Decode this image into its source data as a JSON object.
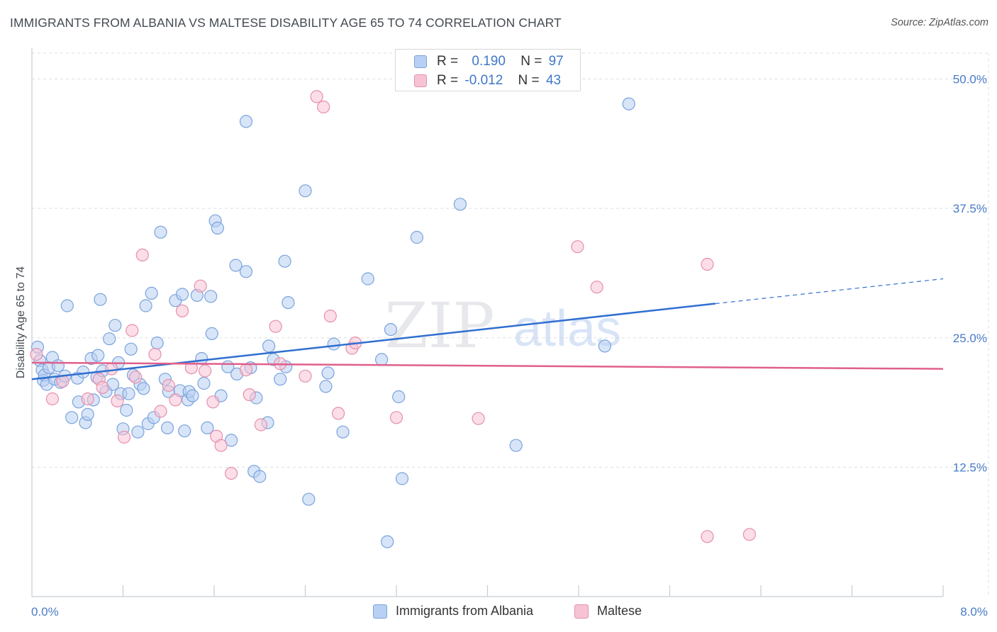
{
  "title": "IMMIGRANTS FROM ALBANIA VS MALTESE DISABILITY AGE 65 TO 74 CORRELATION CHART",
  "source": "Source: ZipAtlas.com",
  "watermark": {
    "zip": "ZIP",
    "atlas": "atlas"
  },
  "colors": {
    "blue_fill": "#b8d0f3",
    "blue_stroke": "#7aa3dc",
    "blue_line": "#2f6fd0",
    "pink_fill": "#f7c3d4",
    "pink_stroke": "#e58fae",
    "pink_line": "#e0608a",
    "tick_text": "#4a7cc7",
    "grid": "#dcdfe6"
  },
  "legend": {
    "series1": {
      "r_label": "R =",
      "r_value": "0.190",
      "n_label": "N =",
      "n_value": "97"
    },
    "series2": {
      "r_label": "R =",
      "r_value": "-0.012",
      "n_label": "N =",
      "n_value": "43"
    }
  },
  "chart_data": {
    "type": "scatter",
    "title": "IMMIGRANTS FROM ALBANIA VS MALTESE DISABILITY AGE 65 TO 74 CORRELATION CHART",
    "xlabel": "",
    "ylabel": "Disability Age 65 to 74",
    "xlim": [
      0,
      8.0
    ],
    "ylim": [
      0,
      52.5
    ],
    "x_tick_labels": [
      "0.0%",
      "8.0%"
    ],
    "y_ticks": [
      12.5,
      25.0,
      37.5,
      50.0
    ],
    "y_tick_labels": [
      "12.5%",
      "25.0%",
      "37.5%",
      "50.0%"
    ],
    "grid": true,
    "legend_position": "bottom-center",
    "series": [
      {
        "name": "Immigrants from Albania",
        "r": 0.19,
        "n": 97,
        "trend": {
          "x": [
            0,
            6.0
          ],
          "y": [
            21.0,
            28.3
          ],
          "dashed_to_x": 8.0,
          "dashed_to_y": 30.7
        },
        "points": [
          [
            0.05,
            24.1
          ],
          [
            0.07,
            22.8
          ],
          [
            0.09,
            21.9
          ],
          [
            0.1,
            20.9
          ],
          [
            0.11,
            21.4
          ],
          [
            0.13,
            20.5
          ],
          [
            0.15,
            22.1
          ],
          [
            0.18,
            23.1
          ],
          [
            0.2,
            21.0
          ],
          [
            0.23,
            22.3
          ],
          [
            0.25,
            20.7
          ],
          [
            0.29,
            21.3
          ],
          [
            0.31,
            28.1
          ],
          [
            0.35,
            17.3
          ],
          [
            0.4,
            21.1
          ],
          [
            0.41,
            18.8
          ],
          [
            0.45,
            21.7
          ],
          [
            0.47,
            16.8
          ],
          [
            0.49,
            17.6
          ],
          [
            0.52,
            23.0
          ],
          [
            0.54,
            19.0
          ],
          [
            0.57,
            21.2
          ],
          [
            0.58,
            23.3
          ],
          [
            0.6,
            28.7
          ],
          [
            0.62,
            21.8
          ],
          [
            0.65,
            19.8
          ],
          [
            0.68,
            24.9
          ],
          [
            0.71,
            20.5
          ],
          [
            0.73,
            26.2
          ],
          [
            0.76,
            22.6
          ],
          [
            0.78,
            19.6
          ],
          [
            0.8,
            16.2
          ],
          [
            0.83,
            18.0
          ],
          [
            0.85,
            19.6
          ],
          [
            0.87,
            23.9
          ],
          [
            0.89,
            21.4
          ],
          [
            0.93,
            15.9
          ],
          [
            0.95,
            20.5
          ],
          [
            0.98,
            20.1
          ],
          [
            1.0,
            28.1
          ],
          [
            1.02,
            16.7
          ],
          [
            1.05,
            29.3
          ],
          [
            1.07,
            17.3
          ],
          [
            1.1,
            24.5
          ],
          [
            1.13,
            35.2
          ],
          [
            1.17,
            21.0
          ],
          [
            1.19,
            16.3
          ],
          [
            1.2,
            19.8
          ],
          [
            1.26,
            28.6
          ],
          [
            1.3,
            19.9
          ],
          [
            1.32,
            29.2
          ],
          [
            1.34,
            16.0
          ],
          [
            1.37,
            19.0
          ],
          [
            1.38,
            19.8
          ],
          [
            1.41,
            19.4
          ],
          [
            1.45,
            29.1
          ],
          [
            1.49,
            23.0
          ],
          [
            1.51,
            20.6
          ],
          [
            1.54,
            16.3
          ],
          [
            1.57,
            29.0
          ],
          [
            1.58,
            25.4
          ],
          [
            1.61,
            36.3
          ],
          [
            1.63,
            35.6
          ],
          [
            1.66,
            19.4
          ],
          [
            1.72,
            22.2
          ],
          [
            1.75,
            15.1
          ],
          [
            1.79,
            32.0
          ],
          [
            1.8,
            21.5
          ],
          [
            1.88,
            31.4
          ],
          [
            1.88,
            45.9
          ],
          [
            1.92,
            22.1
          ],
          [
            1.95,
            12.1
          ],
          [
            1.97,
            19.2
          ],
          [
            2.0,
            11.6
          ],
          [
            2.07,
            16.8
          ],
          [
            2.08,
            24.2
          ],
          [
            2.12,
            22.9
          ],
          [
            2.18,
            21.0
          ],
          [
            2.22,
            32.4
          ],
          [
            2.23,
            22.2
          ],
          [
            2.25,
            28.4
          ],
          [
            2.4,
            39.2
          ],
          [
            2.43,
            9.4
          ],
          [
            2.58,
            20.3
          ],
          [
            2.6,
            21.6
          ],
          [
            2.65,
            24.4
          ],
          [
            2.73,
            15.9
          ],
          [
            2.95,
            30.7
          ],
          [
            3.07,
            22.9
          ],
          [
            3.12,
            5.3
          ],
          [
            3.15,
            25.8
          ],
          [
            3.22,
            19.3
          ],
          [
            3.25,
            11.4
          ],
          [
            3.38,
            34.7
          ],
          [
            3.76,
            37.9
          ],
          [
            4.25,
            14.6
          ],
          [
            5.03,
            24.2
          ],
          [
            5.24,
            47.6
          ]
        ]
      },
      {
        "name": "Maltese",
        "r": -0.012,
        "n": 43,
        "trend": {
          "x": [
            0,
            8.0
          ],
          "y": [
            22.6,
            22.0
          ]
        },
        "points": [
          [
            0.04,
            23.4
          ],
          [
            0.18,
            19.1
          ],
          [
            0.27,
            20.8
          ],
          [
            0.49,
            19.1
          ],
          [
            0.59,
            21.0
          ],
          [
            0.62,
            20.2
          ],
          [
            0.75,
            18.9
          ],
          [
            0.81,
            15.4
          ],
          [
            0.88,
            25.7
          ],
          [
            0.91,
            21.2
          ],
          [
            0.97,
            33.0
          ],
          [
            1.08,
            23.4
          ],
          [
            1.13,
            17.9
          ],
          [
            1.26,
            19.0
          ],
          [
            1.32,
            27.6
          ],
          [
            1.4,
            22.1
          ],
          [
            1.48,
            30.0
          ],
          [
            1.52,
            21.8
          ],
          [
            1.59,
            18.8
          ],
          [
            1.62,
            15.5
          ],
          [
            1.66,
            14.6
          ],
          [
            1.75,
            11.9
          ],
          [
            1.88,
            21.9
          ],
          [
            1.91,
            19.5
          ],
          [
            2.01,
            16.6
          ],
          [
            2.14,
            26.1
          ],
          [
            2.18,
            22.5
          ],
          [
            2.5,
            48.3
          ],
          [
            2.56,
            47.3
          ],
          [
            2.62,
            27.1
          ],
          [
            2.69,
            17.7
          ],
          [
            2.81,
            24.0
          ],
          [
            2.84,
            24.5
          ],
          [
            3.2,
            17.3
          ],
          [
            3.92,
            17.2
          ],
          [
            4.79,
            33.8
          ],
          [
            4.96,
            29.9
          ],
          [
            5.93,
            5.8
          ],
          [
            5.93,
            32.1
          ],
          [
            6.3,
            6.0
          ],
          [
            0.7,
            22.0
          ],
          [
            1.2,
            20.4
          ],
          [
            2.4,
            21.3
          ]
        ]
      }
    ]
  }
}
